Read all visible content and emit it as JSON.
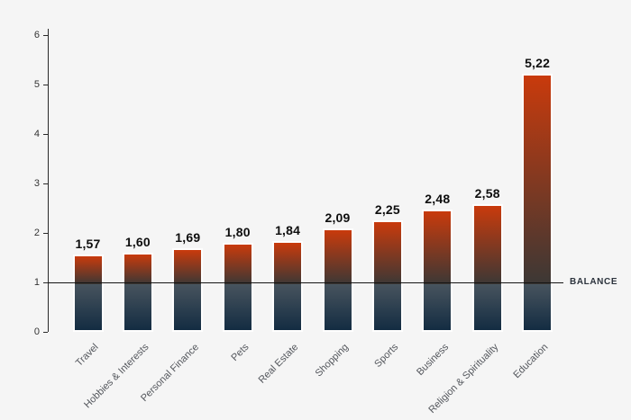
{
  "chart_data": {
    "type": "bar",
    "title": "",
    "xlabel": "",
    "ylabel": "",
    "categories": [
      "Travel",
      "Hobbies & Interests",
      "Personal Finance",
      "Pets",
      "Real Estate",
      "Shopping",
      "Sports",
      "Business",
      "Religion & Spirituality",
      "Education"
    ],
    "values": [
      1.57,
      1.6,
      1.69,
      1.8,
      1.84,
      2.09,
      2.25,
      2.48,
      2.58,
      5.22
    ],
    "value_labels": [
      "1,57",
      "1,60",
      "1,69",
      "1,80",
      "1,84",
      "2,09",
      "2,25",
      "2,48",
      "2,58",
      "5,22"
    ],
    "ylim": [
      0,
      6
    ],
    "ytick_step": 1,
    "grid": false,
    "legend": false,
    "balance": {
      "value": 1,
      "label": "BALANCE"
    },
    "colors": {
      "background": "#f5f5f5",
      "bar_top": "#c93a0c",
      "bar_mid": "#3c3835",
      "bar_below_line": "#48545e",
      "bar_bottom": "#132c42",
      "axis": "#2a2a2a",
      "balance_line": "#151515"
    }
  }
}
